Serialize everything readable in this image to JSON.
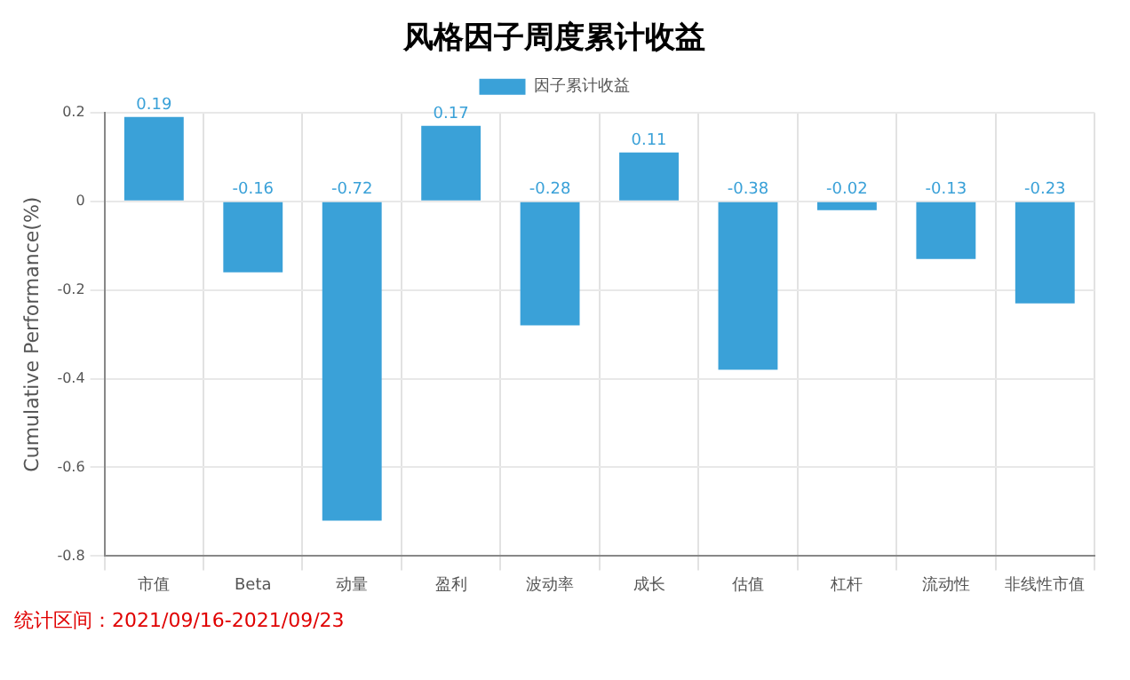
{
  "chart_data": {
    "type": "bar",
    "title": "风格因子周度累计收益",
    "ylabel": "Cumulative Performance(%)",
    "categories": [
      "市值",
      "Beta",
      "动量",
      "盈利",
      "波动率",
      "成长",
      "估值",
      "杠杆",
      "流动性",
      "非线性市值"
    ],
    "series": [
      {
        "name": "因子累计收益",
        "color": "#3aa1d8",
        "values": [
          0.19,
          -0.16,
          -0.72,
          0.17,
          -0.28,
          0.11,
          -0.38,
          -0.02,
          -0.13,
          -0.23
        ]
      }
    ],
    "ylim": [
      -0.8,
      0.2
    ],
    "yticks": [
      -0.8,
      -0.6,
      -0.4,
      -0.2,
      0,
      0.2
    ],
    "grid": true,
    "legend": "top",
    "data_labels": true,
    "annotations": [
      "统计区间：2021/09/16-2021/09/23"
    ]
  }
}
